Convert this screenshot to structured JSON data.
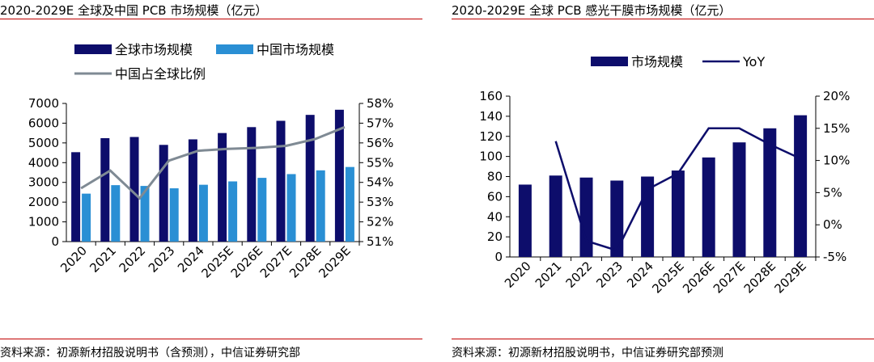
{
  "colors": {
    "navy": "#0d0d6b",
    "lightblue": "#2a8fd4",
    "gray": "#7f8a94",
    "red": "#c00000"
  },
  "left": {
    "title": "2020-2029E 全球及中国 PCB 市场规模（亿元）",
    "source": "资料来源：初源新材招股说明书（含预测），中信证券研究部"
  },
  "right": {
    "title": "2020-2029E 全球 PCB 感光干膜市场规模（亿元）",
    "source": "资料来源：初源新材招股说明书，中信证券研究部预测"
  },
  "chart_data": [
    {
      "type": "bar",
      "categories": [
        "2020",
        "2021",
        "2022",
        "2023",
        "2024",
        "2025E",
        "2026E",
        "2027E",
        "2028E",
        "2029E"
      ],
      "series": [
        {
          "name": "全球市场规模",
          "kind": "bar",
          "axis": "left",
          "color": "#0d0d6b",
          "values": [
            4530,
            5240,
            5300,
            4900,
            5180,
            5500,
            5800,
            6120,
            6420,
            6680
          ]
        },
        {
          "name": "中国市场规模",
          "kind": "bar",
          "axis": "left",
          "color": "#2a8fd4",
          "values": [
            2430,
            2860,
            2820,
            2700,
            2880,
            3050,
            3230,
            3420,
            3610,
            3780
          ]
        },
        {
          "name": "中国占全球比例",
          "kind": "line",
          "axis": "right",
          "color": "#7f8a94",
          "values": [
            53.7,
            54.6,
            53.2,
            55.1,
            55.6,
            55.7,
            55.75,
            55.85,
            56.2,
            56.8
          ]
        }
      ],
      "ylim": [
        0,
        7000
      ],
      "yticks": [
        "0",
        "1000",
        "2000",
        "3000",
        "4000",
        "5000",
        "6000",
        "7000"
      ],
      "y2lim": [
        51,
        58
      ],
      "y2ticks": [
        "51%",
        "52%",
        "53%",
        "54%",
        "55%",
        "56%",
        "57%",
        "58%"
      ],
      "legend_position": "top"
    },
    {
      "type": "bar",
      "categories": [
        "2020",
        "2021",
        "2022",
        "2023",
        "2024",
        "2025E",
        "2026E",
        "2027E",
        "2028E",
        "2029E"
      ],
      "series": [
        {
          "name": "市场规模",
          "kind": "bar",
          "axis": "left",
          "color": "#0d0d6b",
          "values": [
            72,
            81,
            79,
            76,
            80,
            86,
            99,
            114,
            128,
            141
          ]
        },
        {
          "name": "YoY",
          "kind": "line",
          "axis": "right",
          "color": "#0d0d6b",
          "values": [
            null,
            13,
            -2.5,
            -4,
            5.5,
            8,
            15,
            15,
            12.5,
            10.3
          ]
        }
      ],
      "ylim": [
        0,
        160
      ],
      "yticks": [
        "0",
        "20",
        "40",
        "60",
        "80",
        "100",
        "120",
        "140",
        "160"
      ],
      "y2lim": [
        -5,
        20
      ],
      "y2ticks": [
        "-5%",
        "0%",
        "5%",
        "10%",
        "15%",
        "20%"
      ],
      "legend_position": "top"
    }
  ]
}
